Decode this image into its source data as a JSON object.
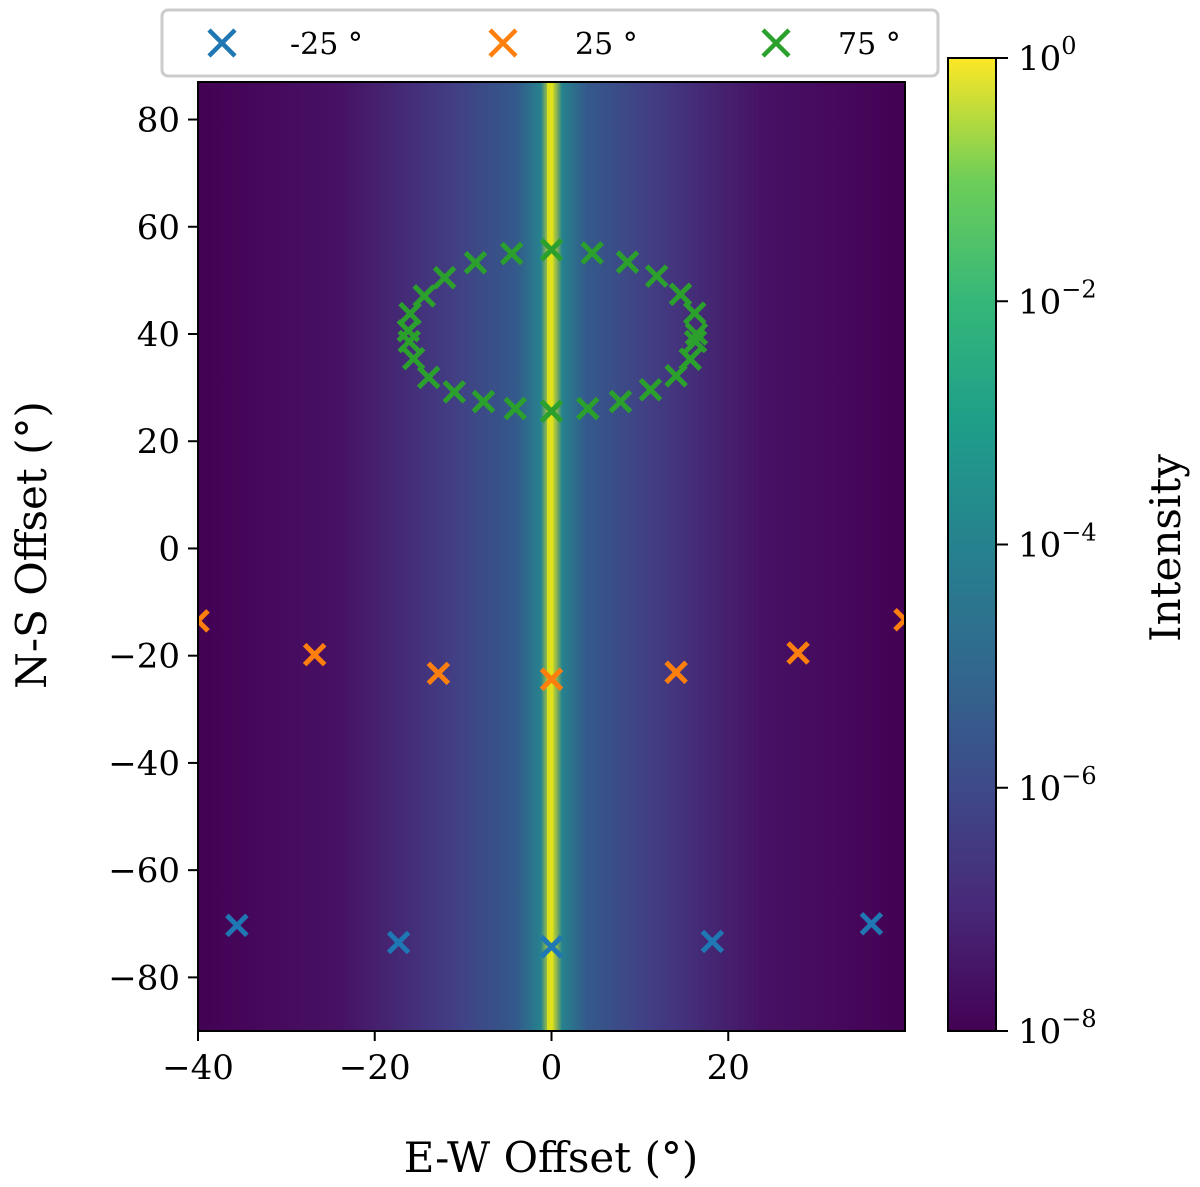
{
  "chart_data": {
    "type": "heatmap+scatter",
    "x_axis": {
      "label": "E-W Offset (°)",
      "range": [
        -40,
        40
      ],
      "ticks": [
        -40,
        -20,
        0,
        20
      ],
      "tick_labels": [
        "−40",
        "−20",
        "0",
        "20"
      ]
    },
    "y_axis": {
      "label": "N-S Offset (°)",
      "range": [
        -90,
        87
      ],
      "ticks": [
        -80,
        -60,
        -40,
        -20,
        0,
        20,
        40,
        60,
        80
      ],
      "tick_labels": [
        "−80",
        "−60",
        "−40",
        "−20",
        "0",
        "20",
        "40",
        "60",
        "80"
      ]
    },
    "heatmap": {
      "description": "Intensity pattern, bright narrow vertical ridge at E-W = 0 falling off with |E-W offset|",
      "colormap": "viridis",
      "scale": "log",
      "vmin_exp": -8,
      "vmax_exp": 0
    },
    "colorbar": {
      "label": "Intensity",
      "ticks": [
        {
          "base": "10",
          "exp": "0",
          "exp_value": 0
        },
        {
          "base": "10",
          "exp": "−2",
          "exp_value": -2
        },
        {
          "base": "10",
          "exp": "−4",
          "exp_value": -4
        },
        {
          "base": "10",
          "exp": "−6",
          "exp_value": -6
        },
        {
          "base": "10",
          "exp": "−8",
          "exp_value": -8
        }
      ]
    },
    "legend": {
      "position": "top",
      "entries": [
        {
          "label": "-25 °",
          "color": "#1f77b4"
        },
        {
          "label": "25 °",
          "color": "#ff7f0e"
        },
        {
          "label": "75 °",
          "color": "#2ca02c"
        }
      ]
    },
    "series": [
      {
        "name": "-25 °",
        "color": "#1f77b4",
        "marker": "x",
        "points": [
          [
            -35.6,
            -70.3
          ],
          [
            -17.3,
            -73.5
          ],
          [
            0,
            -74.3
          ],
          [
            18.2,
            -73.3
          ],
          [
            36.2,
            -70.0
          ]
        ]
      },
      {
        "name": "25 °",
        "color": "#ff7f0e",
        "marker": "x",
        "points": [
          [
            -40,
            -13.5
          ],
          [
            -26.8,
            -19.8
          ],
          [
            -12.8,
            -23.3
          ],
          [
            0,
            -24.4
          ],
          [
            14.1,
            -23.1
          ],
          [
            27.9,
            -19.5
          ],
          [
            40,
            -13.3
          ]
        ]
      },
      {
        "name": "75 °",
        "color": "#2ca02c",
        "marker": "x",
        "points": [
          [
            0,
            55.7
          ],
          [
            4.6,
            55.1
          ],
          [
            8.6,
            53.4
          ],
          [
            11.9,
            50.8
          ],
          [
            14.6,
            47.4
          ],
          [
            16.2,
            43.9
          ],
          [
            16.4,
            40.0
          ],
          [
            16.3,
            38.6
          ],
          [
            15.7,
            35.3
          ],
          [
            14.1,
            32.2
          ],
          [
            11.2,
            29.6
          ],
          [
            7.8,
            27.4
          ],
          [
            4.1,
            26.1
          ],
          [
            0,
            25.6
          ],
          [
            -4.1,
            26.1
          ],
          [
            -7.7,
            27.4
          ],
          [
            -11.0,
            29.2
          ],
          [
            -13.9,
            31.9
          ],
          [
            -15.6,
            35.4
          ],
          [
            -16.1,
            38.6
          ],
          [
            -16.2,
            40.6
          ],
          [
            -16.0,
            43.8
          ],
          [
            -14.4,
            47.1
          ],
          [
            -12.1,
            50.5
          ],
          [
            -8.6,
            53.3
          ],
          [
            -4.5,
            55.0
          ]
        ]
      }
    ]
  }
}
